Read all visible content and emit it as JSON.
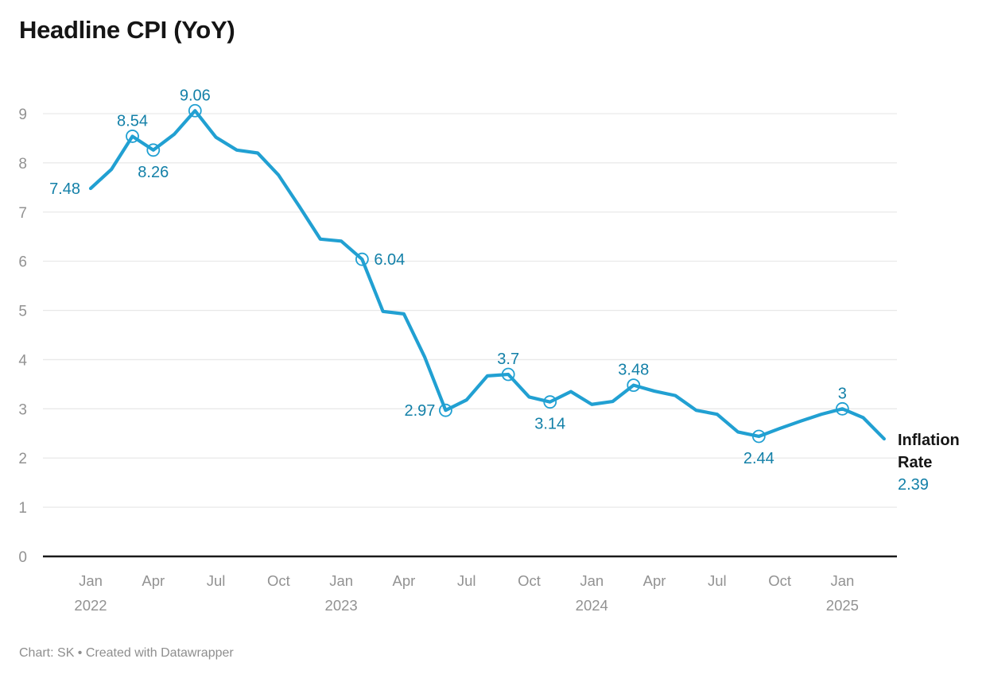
{
  "header": {
    "title": "Headline CPI (YoY)"
  },
  "footer": {
    "text": "Chart: SK • Created with Datawrapper"
  },
  "legend": {
    "series_label": "Inflation Rate",
    "last_value": "2.39"
  },
  "colors": {
    "line": "#21a0d2",
    "label": "#1380a8",
    "grid": "#e9e9e9",
    "axis_text": "#929292",
    "baseline": "#1a1a1a",
    "title": "#151515",
    "footer_text": "#8e8e8e"
  },
  "chart_data": {
    "type": "line",
    "title": "Headline CPI (YoY)",
    "series_name": "Inflation Rate",
    "x": [
      "Jan 2022",
      "Feb 2022",
      "Mar 2022",
      "Apr 2022",
      "May 2022",
      "Jun 2022",
      "Jul 2022",
      "Aug 2022",
      "Sep 2022",
      "Oct 2022",
      "Nov 2022",
      "Dec 2022",
      "Jan 2023",
      "Feb 2023",
      "Mar 2023",
      "Apr 2023",
      "May 2023",
      "Jun 2023",
      "Jul 2023",
      "Aug 2023",
      "Sep 2023",
      "Oct 2023",
      "Nov 2023",
      "Dec 2023",
      "Jan 2024",
      "Feb 2024",
      "Mar 2024",
      "Apr 2024",
      "May 2024",
      "Jun 2024",
      "Jul 2024",
      "Aug 2024",
      "Sep 2024",
      "Oct 2024",
      "Nov 2024",
      "Dec 2024",
      "Jan 2025",
      "Feb 2025",
      "Mar 2025"
    ],
    "values": [
      7.48,
      7.87,
      8.54,
      8.26,
      8.58,
      9.06,
      8.52,
      8.26,
      8.2,
      7.75,
      7.11,
      6.45,
      6.41,
      6.04,
      4.98,
      4.93,
      4.05,
      2.97,
      3.18,
      3.67,
      3.7,
      3.24,
      3.14,
      3.35,
      3.09,
      3.15,
      3.48,
      3.36,
      3.27,
      2.97,
      2.89,
      2.53,
      2.44,
      2.6,
      2.75,
      2.89,
      3.0,
      2.82,
      2.39
    ],
    "ylim": [
      0,
      9
    ],
    "y_ticks": [
      0,
      1,
      2,
      3,
      4,
      5,
      6,
      7,
      8,
      9
    ],
    "x_ticks": [
      {
        "index": 0,
        "month": "Jan",
        "year": "2022"
      },
      {
        "index": 3,
        "month": "Apr",
        "year": ""
      },
      {
        "index": 6,
        "month": "Jul",
        "year": ""
      },
      {
        "index": 9,
        "month": "Oct",
        "year": ""
      },
      {
        "index": 12,
        "month": "Jan",
        "year": "2023"
      },
      {
        "index": 15,
        "month": "Apr",
        "year": ""
      },
      {
        "index": 18,
        "month": "Jul",
        "year": ""
      },
      {
        "index": 21,
        "month": "Oct",
        "year": ""
      },
      {
        "index": 24,
        "month": "Jan",
        "year": "2024"
      },
      {
        "index": 27,
        "month": "Apr",
        "year": ""
      },
      {
        "index": 30,
        "month": "Jul",
        "year": ""
      },
      {
        "index": 33,
        "month": "Oct",
        "year": ""
      },
      {
        "index": 36,
        "month": "Jan",
        "year": "2025"
      }
    ],
    "annotations": [
      {
        "index": 0,
        "label": "7.48",
        "position": "left",
        "marker": false
      },
      {
        "index": 2,
        "label": "8.54",
        "position": "above",
        "marker": true
      },
      {
        "index": 3,
        "label": "8.26",
        "position": "below",
        "marker": true
      },
      {
        "index": 5,
        "label": "9.06",
        "position": "above",
        "marker": true
      },
      {
        "index": 13,
        "label": "6.04",
        "position": "right",
        "marker": true
      },
      {
        "index": 17,
        "label": "2.97",
        "position": "left",
        "marker": true
      },
      {
        "index": 20,
        "label": "3.7",
        "position": "above",
        "marker": true
      },
      {
        "index": 22,
        "label": "3.14",
        "position": "below",
        "marker": true
      },
      {
        "index": 26,
        "label": "3.48",
        "position": "above",
        "marker": true
      },
      {
        "index": 32,
        "label": "2.44",
        "position": "below",
        "marker": true
      },
      {
        "index": 36,
        "label": "3",
        "position": "above",
        "marker": true
      }
    ],
    "grid": "horizontal",
    "legend_position": "right-of-line-end"
  }
}
